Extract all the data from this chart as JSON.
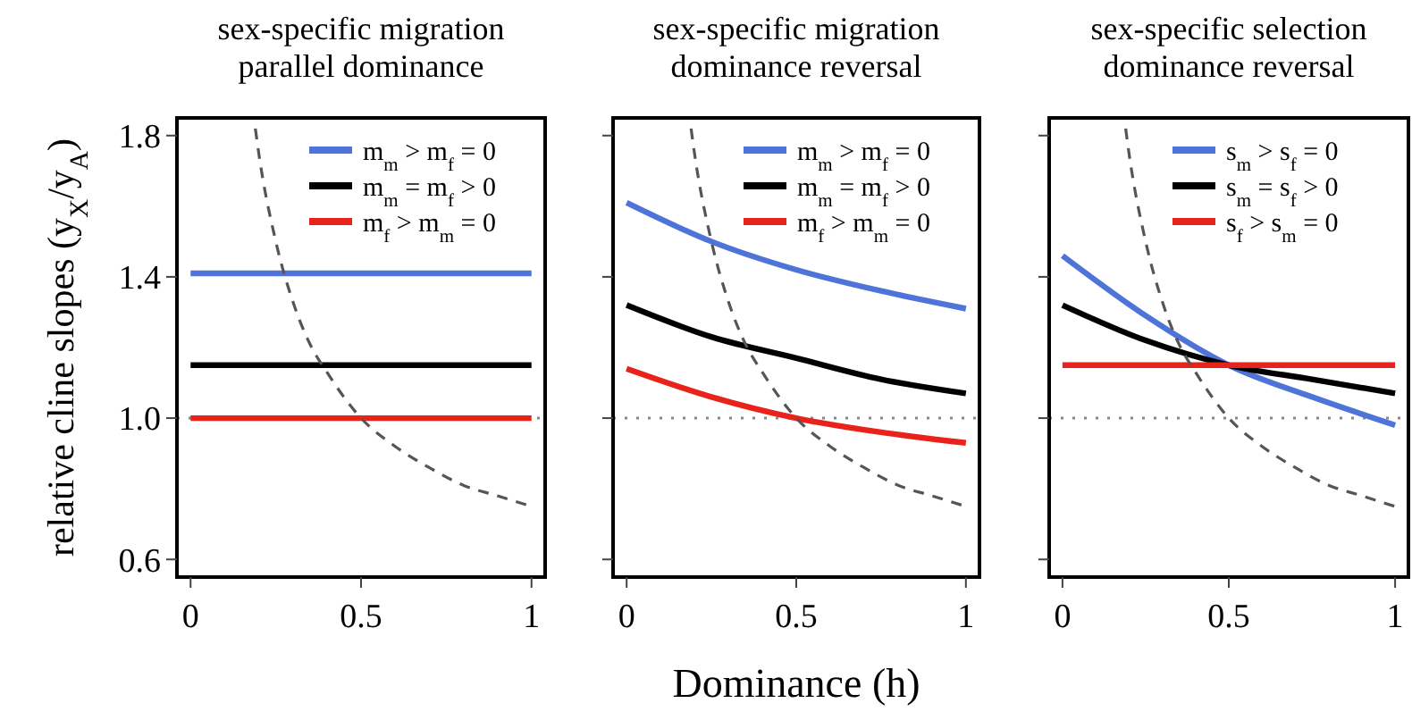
{
  "chart_data": [
    {
      "type": "line",
      "title": "sex-specific migration\nparallel dominance",
      "ylabel": "relative cline slopes (y$_{X}$/y$_{A}$)",
      "xlim": [
        -0.04,
        1.04
      ],
      "ylim": [
        0.55,
        1.85
      ],
      "xticks": [
        0,
        0.5,
        1
      ],
      "yticks": [
        0.6,
        {
          "value": 1,
          "label": "1.0"
        },
        1.4,
        1.8
      ],
      "legend": "top right",
      "x": [
        0,
        0.25,
        0.5,
        0.75,
        1
      ],
      "ref_lines": [
        {
          "axis": "y",
          "value": 1,
          "color": "#888888",
          "line_style": "dotted"
        }
      ],
      "series": [
        {
          "name": "m$_{m}$ > m$_{f}$ = 0",
          "color": "#4f74d9",
          "values": [
            1.41,
            1.41,
            1.41,
            1.41,
            1.41
          ]
        },
        {
          "name": "m$_{m}$ = m$_{f}$ > 0",
          "color": "#000000",
          "values": [
            1.15,
            1.15,
            1.15,
            1.15,
            1.15
          ]
        },
        {
          "name": "m$_{f}$ > m$_{m}$ = 0",
          "color": "#e8231b",
          "values": [
            1.0,
            1.0,
            1.0,
            1.0,
            1.0
          ]
        },
        {
          "color": "#555555",
          "line_style": "dashed",
          "x": [
            0.19,
            0.2,
            0.25,
            0.3,
            0.35,
            0.4,
            0.5,
            0.6,
            0.7,
            0.8,
            0.9,
            1
          ],
          "values": [
            1.82,
            1.75,
            1.5,
            1.33,
            1.21,
            1.13,
            1.0,
            0.92,
            0.86,
            0.81,
            0.78,
            0.75
          ]
        }
      ]
    },
    {
      "type": "line",
      "title": "sex-specific migration\ndominance reversal",
      "xlabel": "Dominance (h)",
      "xlim": [
        -0.04,
        1.04
      ],
      "ylim": [
        0.55,
        1.85
      ],
      "xticks": [
        0,
        0.5,
        1
      ],
      "yticks": [
        {
          "value": 0.6,
          "label": null
        },
        {
          "value": 1,
          "label": null
        },
        {
          "value": 1.4,
          "label": null
        },
        {
          "value": 1.8,
          "label": null
        }
      ],
      "tick_labels": "x",
      "legend": "top right",
      "x": [
        0,
        0.25,
        0.5,
        0.75,
        1
      ],
      "ref_lines": [
        {
          "axis": "y",
          "value": 1,
          "color": "#888888",
          "line_style": "dotted"
        }
      ],
      "series": [
        {
          "name": "m$_{m}$ > m$_{f}$ = 0",
          "color": "#4f74d9",
          "values": [
            1.61,
            1.5,
            1.42,
            1.36,
            1.31
          ]
        },
        {
          "name": "m$_{m}$ = m$_{f}$ > 0",
          "color": "#000000",
          "values": [
            1.32,
            1.23,
            1.17,
            1.11,
            1.07
          ]
        },
        {
          "name": "m$_{f}$ > m$_{m}$ = 0",
          "color": "#e8231b",
          "values": [
            1.14,
            1.06,
            1.0,
            0.96,
            0.93
          ]
        },
        {
          "color": "#555555",
          "line_style": "dashed",
          "x": [
            0.19,
            0.2,
            0.25,
            0.3,
            0.35,
            0.4,
            0.5,
            0.6,
            0.7,
            0.8,
            0.9,
            1
          ],
          "values": [
            1.82,
            1.75,
            1.5,
            1.33,
            1.21,
            1.13,
            1.0,
            0.92,
            0.86,
            0.81,
            0.78,
            0.75
          ]
        }
      ]
    },
    {
      "type": "line",
      "title": "sex-specific selection\ndominance reversal",
      "xlim": [
        -0.04,
        1.04
      ],
      "ylim": [
        0.55,
        1.85
      ],
      "xticks": [
        0,
        0.5,
        1
      ],
      "yticks": [
        {
          "value": 0.6,
          "label": null
        },
        {
          "value": 1,
          "label": null
        },
        {
          "value": 1.4,
          "label": null
        },
        {
          "value": 1.8,
          "label": null
        }
      ],
      "tick_labels": "x",
      "legend": "top right",
      "x": [
        0,
        0.25,
        0.5,
        0.75,
        1
      ],
      "ref_lines": [
        {
          "axis": "y",
          "value": 1,
          "color": "#888888",
          "line_style": "dotted"
        }
      ],
      "series": [
        {
          "name": "s$_{m}$ > s$_{f}$ = 0",
          "color": "#4f74d9",
          "values": [
            1.46,
            1.29,
            1.15,
            1.06,
            0.98
          ]
        },
        {
          "name": "s$_{m}$ = s$_{f}$ > 0",
          "color": "#000000",
          "values": [
            1.32,
            1.22,
            1.15,
            1.11,
            1.07
          ]
        },
        {
          "name": "s$_{f}$ > s$_{m}$ = 0",
          "color": "#e8231b",
          "values": [
            1.15,
            1.15,
            1.15,
            1.15,
            1.15
          ]
        },
        {
          "color": "#555555",
          "line_style": "dashed",
          "x": [
            0.19,
            0.2,
            0.25,
            0.3,
            0.35,
            0.4,
            0.5,
            0.6,
            0.7,
            0.8,
            0.9,
            1
          ],
          "values": [
            1.82,
            1.75,
            1.5,
            1.33,
            1.21,
            1.13,
            1.0,
            0.92,
            0.86,
            0.81,
            0.78,
            0.75
          ]
        }
      ]
    }
  ]
}
